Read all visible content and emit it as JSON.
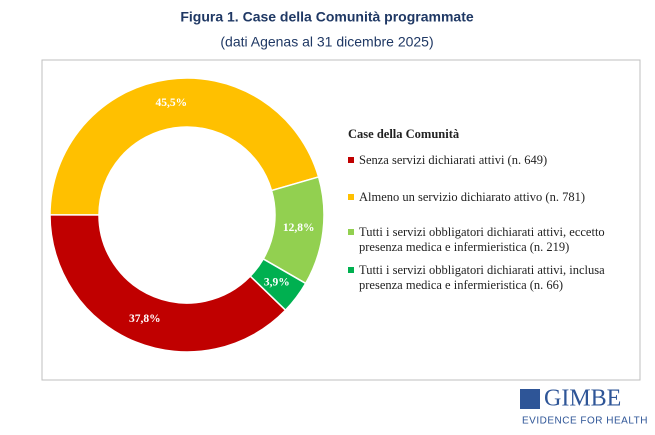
{
  "chart_data": {
    "type": "pie",
    "title": "Figura 1. Case della Comunità programmate",
    "subtitle": "(dati Agenas al 31 dicembre 2025)",
    "legend_title": "Case della Comunità",
    "categories": [
      "Senza servizi dichiarati attivi (n. 649)",
      "Almeno un servizio dichiarato attivo (n. 781)",
      "Tutti i servizi obbligatori dichiarati attivi, eccetto presenza medica e infermieristica (n. 219)",
      "Tutti i servizi obbligatori dichiarati attivi, inclusa presenza medica e infermieristica (n. 66)"
    ],
    "values": [
      37.8,
      45.5,
      12.8,
      3.9
    ],
    "value_labels": [
      "37,8%",
      "45,5%",
      "12,8%",
      "3,9%"
    ],
    "colors": [
      "#c00000",
      "#ffc000",
      "#92d050",
      "#00b050"
    ],
    "legend": "right"
  },
  "logo": {
    "name": "GIMBE",
    "tagline": "EVIDENCE FOR HEALTH"
  }
}
